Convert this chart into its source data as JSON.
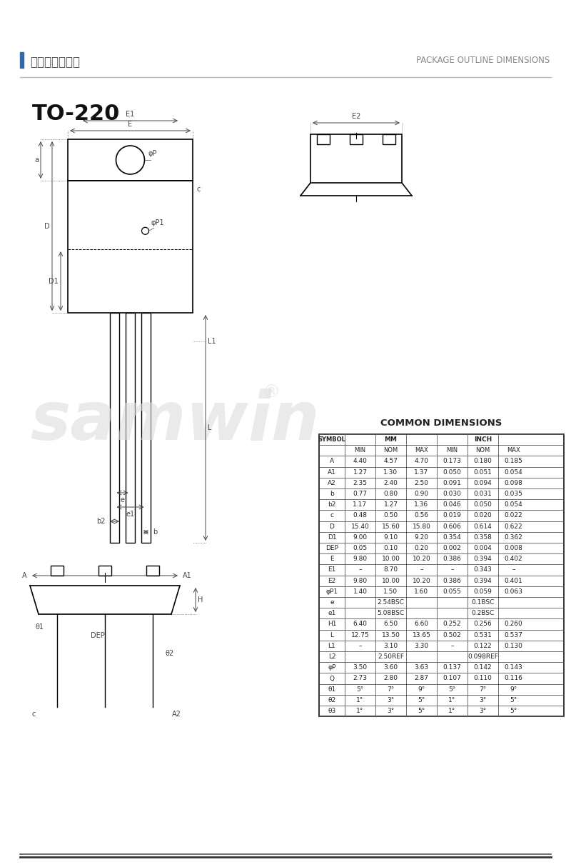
{
  "title_chinese": "产品封装尺寸图",
  "title_english": "PACKAGE OUTLINE DIMENSIONS",
  "package_name": "TO-220",
  "bg_color": "#ffffff",
  "line_color": "#000000",
  "text_color": "#333333",
  "watermark_color": "#d0d0d0",
  "table_title": "COMMON DIMENSIONS",
  "table_data": [
    [
      "A",
      "4.40",
      "4.57",
      "4.70",
      "0.173",
      "0.180",
      "0.185"
    ],
    [
      "A1",
      "1.27",
      "1.30",
      "1.37",
      "0.050",
      "0.051",
      "0.054"
    ],
    [
      "A2",
      "2.35",
      "2.40",
      "2.50",
      "0.091",
      "0.094",
      "0.098"
    ],
    [
      "b",
      "0.77",
      "0.80",
      "0.90",
      "0.030",
      "0.031",
      "0.035"
    ],
    [
      "b2",
      "1.17",
      "1.27",
      "1.36",
      "0.046",
      "0.050",
      "0.054"
    ],
    [
      "c",
      "0.48",
      "0.50",
      "0.56",
      "0.019",
      "0.020",
      "0.022"
    ],
    [
      "D",
      "15.40",
      "15.60",
      "15.80",
      "0.606",
      "0.614",
      "0.622"
    ],
    [
      "D1",
      "9.00",
      "9.10",
      "9.20",
      "0.354",
      "0.358",
      "0.362"
    ],
    [
      "DEP",
      "0.05",
      "0.10",
      "0.20",
      "0.002",
      "0.004",
      "0.008"
    ],
    [
      "E",
      "9.80",
      "10.00",
      "10.20",
      "0.386",
      "0.394",
      "0.402"
    ],
    [
      "E1",
      "–",
      "8.70",
      "–",
      "–",
      "0.343",
      "–"
    ],
    [
      "E2",
      "9.80",
      "10.00",
      "10.20",
      "0.386",
      "0.394",
      "0.401"
    ],
    [
      "φP1",
      "1.40",
      "1.50",
      "1.60",
      "0.055",
      "0.059",
      "0.063"
    ],
    [
      "e",
      "2.54BSC",
      "",
      "",
      "0.1BSC",
      "",
      ""
    ],
    [
      "e1",
      "5.08BSC",
      "",
      "",
      "0.2BSC",
      "",
      ""
    ],
    [
      "H1",
      "6.40",
      "6.50",
      "6.60",
      "0.252",
      "0.256",
      "0.260"
    ],
    [
      "L",
      "12.75",
      "13.50",
      "13.65",
      "0.502",
      "0.531",
      "0.537"
    ],
    [
      "L1",
      "–",
      "3.10",
      "3.30",
      "–",
      "0.122",
      "0.130"
    ],
    [
      "L2",
      "2.50REF",
      "",
      "",
      "0.098REF",
      "",
      ""
    ],
    [
      "φP",
      "3.50",
      "3.60",
      "3.63",
      "0.137",
      "0.142",
      "0.143"
    ],
    [
      "Q",
      "2.73",
      "2.80",
      "2.87",
      "0.107",
      "0.110",
      "0.116"
    ],
    [
      "θ1",
      "5°",
      "7°",
      "9°",
      "5°",
      "7°",
      "9°"
    ],
    [
      "θ2",
      "1°",
      "3°",
      "5°",
      "1°",
      "3°",
      "5°"
    ],
    [
      "θ3",
      "1°",
      "3°",
      "5°",
      "1°",
      "3°",
      "5°"
    ]
  ],
  "special_rows": [
    13,
    14,
    18
  ]
}
